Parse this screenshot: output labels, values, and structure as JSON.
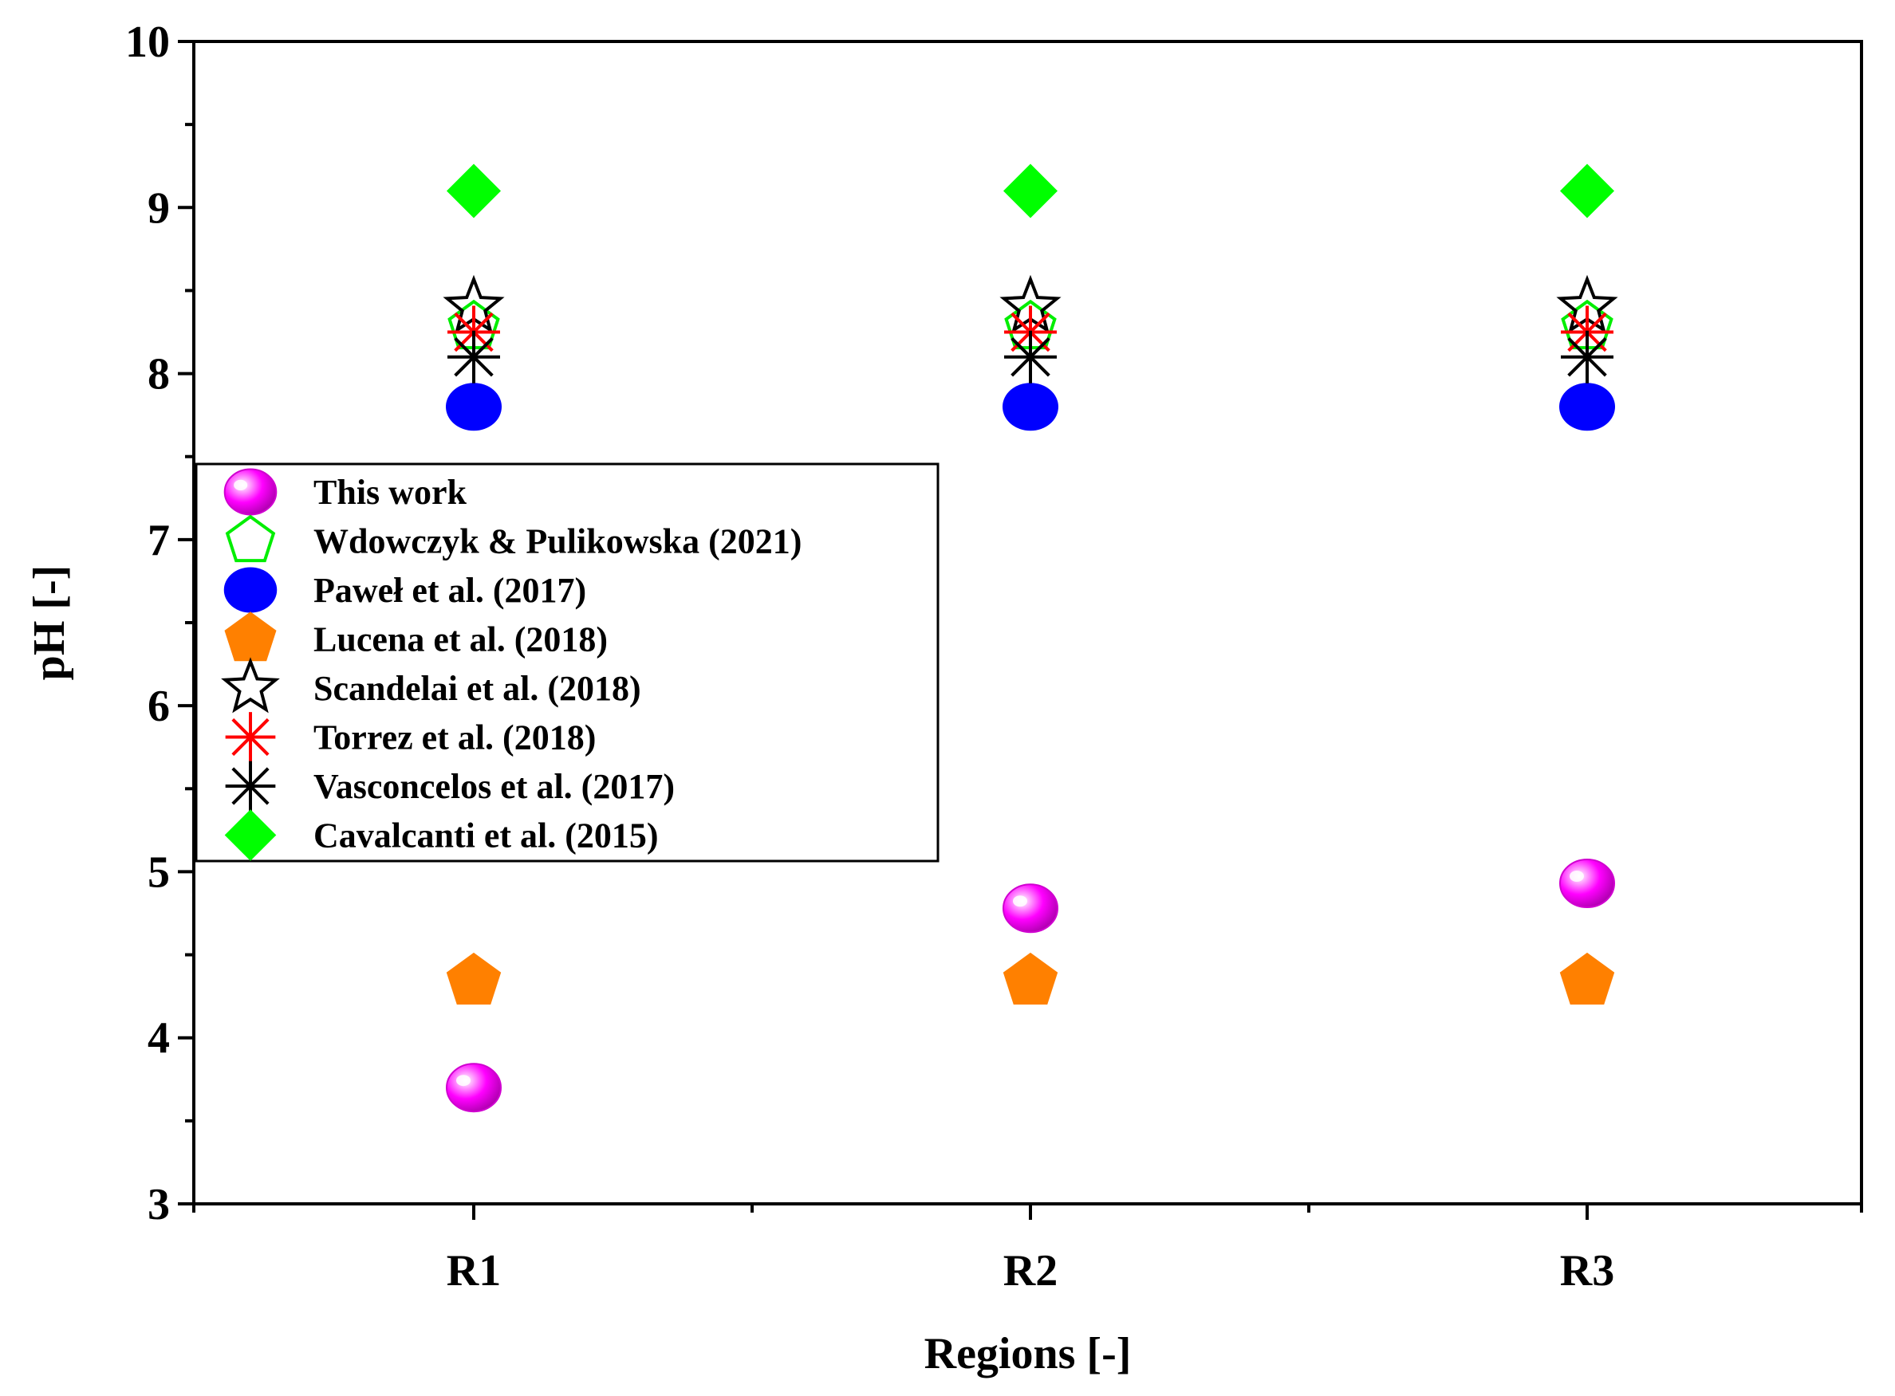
{
  "chart_data": {
    "type": "scatter",
    "title": "",
    "xlabel": "Regions [-]",
    "ylabel": "pH [-]",
    "categories": [
      "R1",
      "R2",
      "R3"
    ],
    "ylim": [
      3,
      10
    ],
    "yticks": [
      "3",
      "4",
      "5",
      "6",
      "7",
      "8",
      "9",
      "10"
    ],
    "grid": false,
    "legend_position": "left",
    "series": [
      {
        "name": "This work",
        "marker": "glossy-sphere",
        "color": "#ff00ff",
        "values": [
          3.7,
          4.78,
          4.93
        ]
      },
      {
        "name": "Wdowczyk & Pulikowska (2021)",
        "marker": "pentagon-open",
        "color": "#00ee00",
        "values": [
          8.28,
          8.28,
          8.28
        ]
      },
      {
        "name": "Paweł et al. (2017)",
        "marker": "circle",
        "color": "#0000ff",
        "values": [
          7.8,
          7.8,
          7.8
        ]
      },
      {
        "name": "Lucena et al. (2018)",
        "marker": "pentagon",
        "color": "#ff8000",
        "values": [
          4.34,
          4.34,
          4.34
        ]
      },
      {
        "name": "Scandelai et al. (2018)",
        "marker": "star-open",
        "color": "#000000",
        "values": [
          8.4,
          8.4,
          8.4
        ]
      },
      {
        "name": "Torrez et al. (2018)",
        "marker": "asterisk",
        "color": "#ff0000",
        "values": [
          8.25,
          8.25,
          8.25
        ]
      },
      {
        "name": "Vasconcelos et al. (2017)",
        "marker": "asterisk",
        "color": "#000000",
        "values": [
          8.1,
          8.1,
          8.1
        ]
      },
      {
        "name": "Cavalcanti et al. (2015)",
        "marker": "diamond",
        "color": "#00ff00",
        "values": [
          9.1,
          9.1,
          9.1
        ]
      }
    ]
  }
}
